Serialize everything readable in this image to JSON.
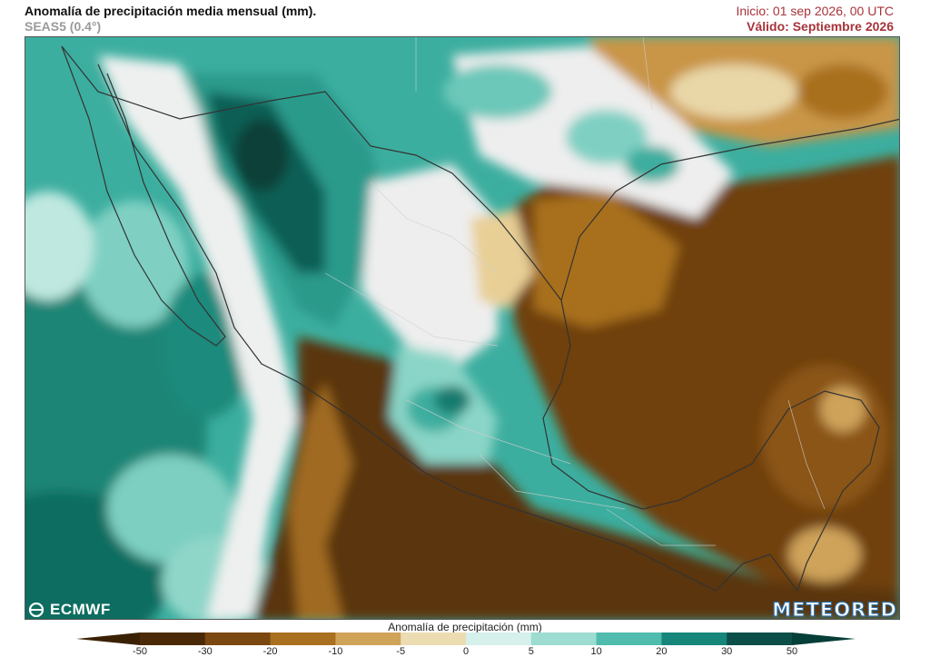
{
  "header": {
    "title": "Anomalía de precipitación media mensual (mm).",
    "subtitle": "SEAS5 (0.4°)",
    "run": "Inicio: 01 sep 2026, 00 UTC",
    "valid": "Válido: Septiembre 2026"
  },
  "logos": {
    "left": "ECMWF",
    "right": "METEORED"
  },
  "legend": {
    "title": "Anomalía de precipitación (mm)",
    "ticks": [
      "-50",
      "-30",
      "-20",
      "-10",
      "-5",
      "0",
      "5",
      "10",
      "20",
      "30",
      "50"
    ],
    "colors": [
      "#4a2a06",
      "#7a4810",
      "#a8701f",
      "#cfa35a",
      "#ecdcb2",
      "#f2f2f2",
      "#d6f0eb",
      "#9ddcd0",
      "#4fbcad",
      "#16867a",
      "#0b4f48"
    ],
    "underflow_color": "#3a2104",
    "overflow_color": "#063e38"
  },
  "colors": {
    "ocean_wet": "#2a9d8f",
    "ocean_wet_dark": "#167a6e",
    "land_dry": "#6a3c0d",
    "land_dry_dark": "#4a2a06",
    "neutral": "#eeeeee",
    "border": "#333333"
  }
}
